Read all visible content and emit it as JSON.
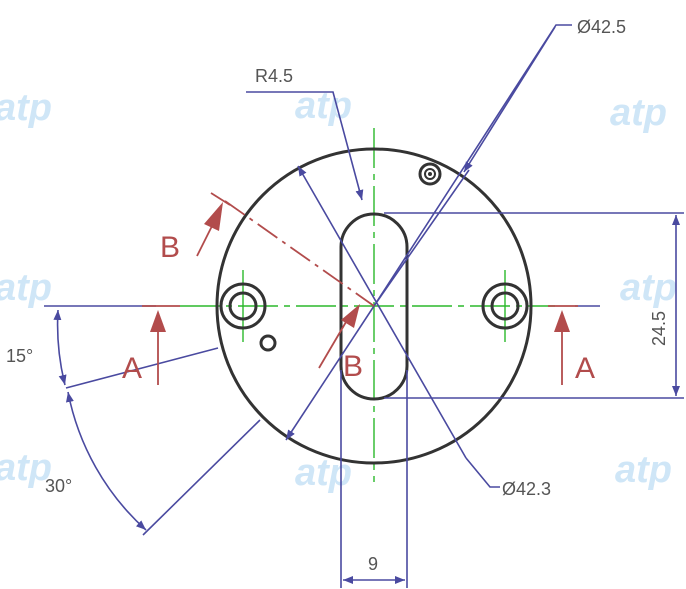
{
  "watermark": "atp",
  "dimensions": {
    "outer_diameter": "Ø42.5",
    "inner_diameter": "Ø42.3",
    "slot_radius": "R4.5",
    "slot_length": "24.5",
    "slot_width": "9",
    "angle_upper": "15°",
    "angle_lower": "30°"
  },
  "section_labels": {
    "a_left": "A",
    "a_right": "A",
    "b_upper": "B",
    "b_lower": "B"
  },
  "colors": {
    "dimension_lines": "#4a4aa0",
    "part_outline": "#333333",
    "center_lines": "#2bb82b",
    "section_marks": "#b24c4c",
    "watermark": "#cfe6f7"
  }
}
